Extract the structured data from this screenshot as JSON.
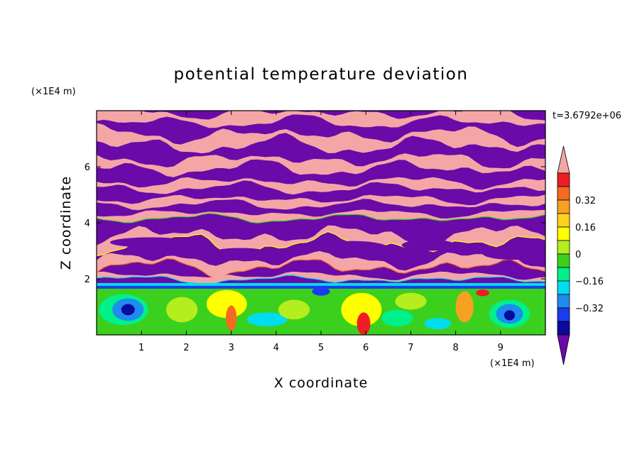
{
  "chart_data": {
    "type": "heatmap",
    "title": "potential temperature deviation",
    "xlabel": "X coordinate",
    "ylabel": "Z coordinate",
    "x_unit": "(×1E4 m)",
    "y_unit": "(×1E4 m)",
    "time_label": "t=3.6792e+06",
    "xlim": [
      0,
      10
    ],
    "ylim": [
      0,
      8
    ],
    "x_ticks": [
      "1",
      "2",
      "3",
      "4",
      "5",
      "6",
      "7",
      "8",
      "9"
    ],
    "y_ticks": [
      "2",
      "4",
      "6"
    ],
    "colorbar": {
      "labels": [
        "0.32",
        "0.16",
        "0",
        "-0.16",
        "-0.32"
      ],
      "levels_top_to_bottom": [
        {
          "color": "#f4a6a6"
        },
        {
          "color": "#ee1e24"
        },
        {
          "color": "#f46a1e"
        },
        {
          "color": "#f8a020"
        },
        {
          "color": "#ffd21e"
        },
        {
          "color": "#ffff00"
        },
        {
          "color": "#b4ee1e"
        },
        {
          "color": "#3cd01e"
        },
        {
          "color": "#00f08c"
        },
        {
          "color": "#00ddee"
        },
        {
          "color": "#1e8cf0"
        },
        {
          "color": "#1a3cee"
        },
        {
          "color": "#0a0a9c"
        },
        {
          "color": "#6a0aa8"
        }
      ]
    },
    "pattern_description_levels": {
      "upper_layer": "alternating bands of highest (pink) and lowest (purple) levels above z=2",
      "boundary_layer": "mixed green, cyan, yellow, orange values below z=2 with blue cores near x=0.7 and x=9.2"
    }
  }
}
